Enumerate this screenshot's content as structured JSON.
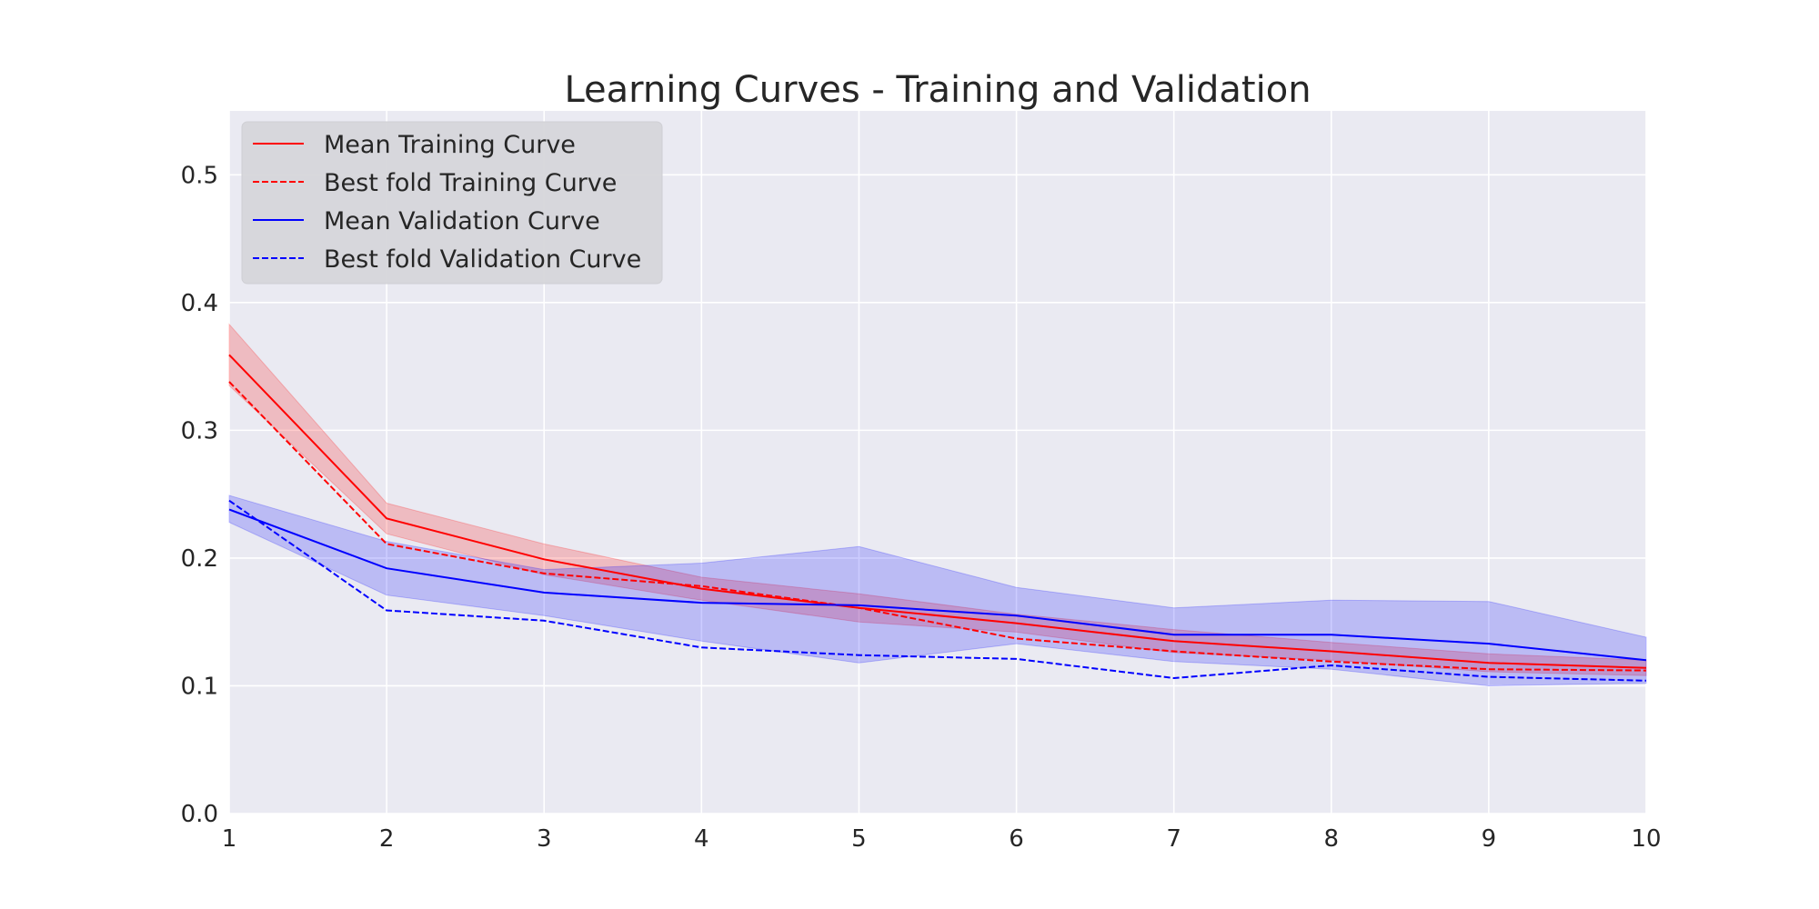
{
  "chart_data": {
    "type": "line",
    "title": "Learning Curves - Training and Validation",
    "xlabel": "",
    "ylabel": "",
    "xlim": [
      1,
      10
    ],
    "ylim": [
      0.0,
      0.55
    ],
    "x": [
      1,
      2,
      3,
      4,
      5,
      6,
      7,
      8,
      9,
      10
    ],
    "x_ticks": [
      "1",
      "2",
      "3",
      "4",
      "5",
      "6",
      "7",
      "8",
      "9",
      "10"
    ],
    "y_ticks": [
      {
        "value": 0.0,
        "label": "0.0"
      },
      {
        "value": 0.1,
        "label": "0.1"
      },
      {
        "value": 0.2,
        "label": "0.2"
      },
      {
        "value": 0.3,
        "label": "0.3"
      },
      {
        "value": 0.4,
        "label": "0.4"
      },
      {
        "value": 0.5,
        "label": "0.5"
      }
    ],
    "grid": true,
    "legend_position": "top-left",
    "series": [
      {
        "name": "Mean Training Curve",
        "color": "#ff0000",
        "dash": "solid",
        "values": [
          0.359,
          0.231,
          0.199,
          0.176,
          0.161,
          0.149,
          0.135,
          0.127,
          0.118,
          0.114
        ],
        "band_lower": [
          0.335,
          0.219,
          0.187,
          0.167,
          0.15,
          0.142,
          0.126,
          0.12,
          0.111,
          0.108
        ],
        "band_upper": [
          0.383,
          0.243,
          0.211,
          0.185,
          0.172,
          0.156,
          0.144,
          0.134,
          0.125,
          0.12
        ]
      },
      {
        "name": "Best fold Training Curve",
        "color": "#ff0000",
        "dash": "dashed",
        "values": [
          0.338,
          0.211,
          0.188,
          0.178,
          0.161,
          0.137,
          0.127,
          0.119,
          0.113,
          0.112
        ]
      },
      {
        "name": "Mean Validation Curve",
        "color": "#0000ff",
        "dash": "solid",
        "values": [
          0.238,
          0.192,
          0.173,
          0.165,
          0.163,
          0.155,
          0.14,
          0.14,
          0.133,
          0.12
        ],
        "band_lower": [
          0.228,
          0.171,
          0.155,
          0.135,
          0.118,
          0.133,
          0.119,
          0.113,
          0.1,
          0.102
        ],
        "band_upper": [
          0.249,
          0.213,
          0.191,
          0.196,
          0.209,
          0.177,
          0.161,
          0.167,
          0.166,
          0.138
        ]
      },
      {
        "name": "Best fold Validation Curve",
        "color": "#0000ff",
        "dash": "dashed",
        "values": [
          0.245,
          0.159,
          0.151,
          0.13,
          0.124,
          0.121,
          0.106,
          0.116,
          0.107,
          0.104
        ]
      }
    ]
  },
  "style": {
    "plot_background": "#eaeaf2",
    "grid_color": "#ffffff",
    "legend_background": "#d6d6da",
    "red_band_fill": "#ff0000",
    "blue_band_fill": "#0000ff"
  }
}
